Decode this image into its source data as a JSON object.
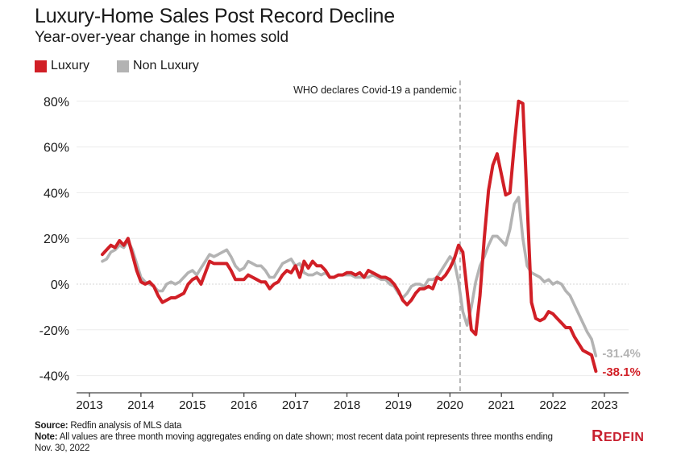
{
  "header": {
    "title": "Luxury-Home Sales Post Record Decline",
    "subtitle": "Year-over-year change in homes sold"
  },
  "legend": [
    {
      "label": "Luxury",
      "color": "#d11f26"
    },
    {
      "label": "Non Luxury",
      "color": "#b3b3b3"
    }
  ],
  "annotation": {
    "label": "WHO declares Covid-19 a pandemic",
    "date": "2020-03"
  },
  "footer": {
    "source_label": "Source:",
    "source_text": " Redfin analysis of MLS data",
    "note_label": "Note:",
    "note_text": " All values are three month moving aggregates ending on date shown; most recent data point represents three months ending Nov. 30, 2022"
  },
  "logo": {
    "text_first": "R",
    "text_rest": "EDFIN",
    "color": "#c8202f"
  },
  "chart_data": {
    "type": "line",
    "title": "Luxury-Home Sales Post Record Decline",
    "subtitle": "Year-over-year change in homes sold",
    "xlabel": "",
    "ylabel": "",
    "x_start": "2013-04",
    "x_frequency": "monthly",
    "x_ticks": [
      "2013",
      "2014",
      "2015",
      "2016",
      "2017",
      "2018",
      "2019",
      "2020",
      "2021",
      "2022",
      "2023"
    ],
    "y_ticks": [
      "80%",
      "60%",
      "40%",
      "20%",
      "0%",
      "-20%",
      "-40%"
    ],
    "y_tick_values": [
      80,
      60,
      40,
      20,
      0,
      -20,
      -40
    ],
    "xlim": [
      "2012-11",
      "2023-08"
    ],
    "ylim": [
      -45,
      86
    ],
    "grid": true,
    "legend_position": "top-left",
    "series": [
      {
        "name": "Luxury",
        "color": "#d11f26",
        "end_label": "-38.1%",
        "values": [
          13,
          15,
          17,
          16,
          19,
          17,
          20,
          13,
          6,
          1,
          0,
          1,
          -1,
          -5,
          -8,
          -7,
          -6,
          -6,
          -5,
          -4,
          0,
          2,
          3,
          0,
          5,
          10,
          9,
          9,
          9,
          9,
          6,
          2,
          2,
          2,
          4,
          3,
          2,
          1,
          1,
          -2,
          0,
          1,
          4,
          6,
          5,
          8,
          3,
          10,
          7,
          10,
          8,
          8,
          6,
          3,
          3,
          4,
          4,
          5,
          5,
          4,
          5,
          3,
          6,
          5,
          4,
          3,
          3,
          2,
          0,
          -3,
          -7,
          -9,
          -7,
          -4,
          -2,
          -2,
          -1,
          -2,
          3,
          2,
          4,
          7,
          11,
          17,
          14,
          -3,
          -20,
          -22,
          -5,
          20,
          41,
          52,
          57,
          48,
          39,
          40,
          61,
          80,
          79,
          36,
          -8,
          -15,
          -16,
          -15,
          -12,
          -13,
          -15,
          -17,
          -19,
          -19,
          -23,
          -26,
          -29,
          -30,
          -31,
          -38.1
        ]
      },
      {
        "name": "Non Luxury",
        "color": "#b3b3b3",
        "end_label": "-31.4%",
        "values": [
          10,
          11,
          14,
          15,
          17,
          16,
          19,
          15,
          9,
          3,
          1,
          0,
          -1,
          -3,
          -3,
          0,
          1,
          0,
          1,
          3,
          5,
          6,
          4,
          7,
          10,
          13,
          12,
          13,
          14,
          15,
          12,
          8,
          6,
          7,
          10,
          9,
          8,
          8,
          6,
          3,
          3,
          6,
          9,
          10,
          11,
          8,
          9,
          5,
          4,
          4,
          5,
          4,
          5,
          3,
          3,
          4,
          4,
          4,
          4,
          3,
          3,
          3,
          3,
          4,
          3,
          2,
          2,
          0,
          -1,
          -4,
          -6,
          -4,
          -1,
          0,
          0,
          -1,
          2,
          2,
          3,
          6,
          9,
          12,
          10,
          1,
          -12,
          -18,
          -10,
          1,
          8,
          12,
          17,
          21,
          21,
          19,
          17,
          24,
          35,
          38,
          20,
          8,
          5,
          4,
          3,
          1,
          2,
          0,
          1,
          0,
          -3,
          -5,
          -9,
          -13,
          -17,
          -21,
          -24,
          -31.4
        ]
      }
    ]
  }
}
